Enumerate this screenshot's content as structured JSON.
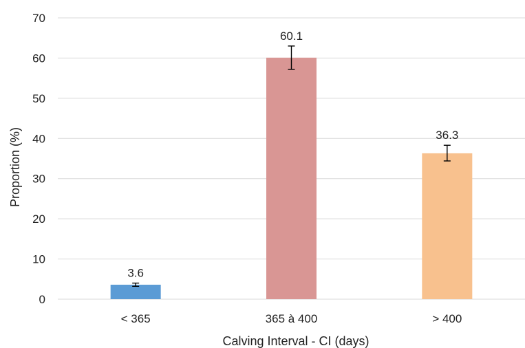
{
  "chart_data": {
    "type": "bar",
    "categories": [
      "< 365",
      "365 à 400",
      "> 400"
    ],
    "values": [
      3.6,
      60.1,
      36.3
    ],
    "data_labels": [
      "3.6",
      "60.1",
      "36.3"
    ],
    "error_bars": [
      {
        "low": 3.2,
        "high": 4.0
      },
      {
        "low": 57.2,
        "high": 63.0
      },
      {
        "low": 34.4,
        "high": 38.3
      }
    ],
    "colors": [
      "#5b9bd5",
      "#d99694",
      "#f8c18e"
    ],
    "title": "",
    "xlabel": "Calving Interval  - CI (days)",
    "ylabel": "Proportion (%)",
    "ylim": [
      0,
      70
    ],
    "yticks": [
      "0",
      "10",
      "20",
      "30",
      "40",
      "50",
      "60",
      "70"
    ],
    "grid": true,
    "legend": "none"
  }
}
